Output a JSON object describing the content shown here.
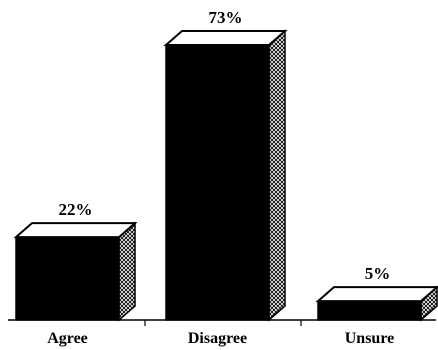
{
  "chart_data": {
    "type": "bar",
    "style": "3d",
    "categories": [
      "Agree",
      "Disagree",
      "Unsure"
    ],
    "values": [
      22,
      73,
      5
    ],
    "data_labels": [
      "22%",
      "73%",
      "5%"
    ],
    "title": "",
    "xlabel": "",
    "ylabel": "",
    "ylim": [
      0,
      73
    ],
    "grid": false,
    "legend": "none",
    "colors": {
      "front": "#000000",
      "top": "#ffffff",
      "side_pattern": "crosshatch",
      "axis": "#000000"
    }
  }
}
